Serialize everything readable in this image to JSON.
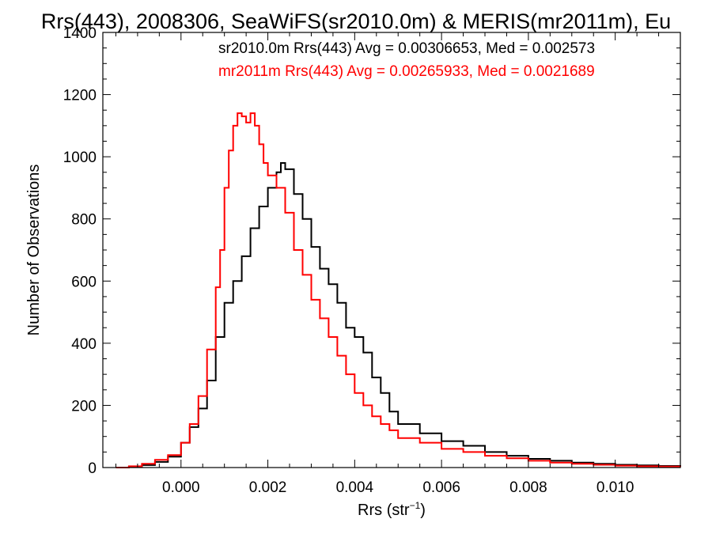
{
  "chart_data": {
    "type": "histogram",
    "title": "Rrs(443), 2008306, SeaWiFS(sr2010.0m) & MERIS(mr2011m), Eu",
    "xlabel": "Rrs (str",
    "xlabel_sup": "−1",
    "xlabel_close": ")",
    "ylabel": "Number of Observations",
    "xlim": [
      -0.0018,
      0.0115
    ],
    "ylim": [
      0,
      1400
    ],
    "x_ticks": [
      0.0,
      0.002,
      0.004,
      0.006,
      0.008,
      0.01
    ],
    "x_tick_labels": [
      "0.000",
      "0.002",
      "0.004",
      "0.006",
      "0.008",
      "0.010"
    ],
    "y_ticks": [
      0,
      200,
      400,
      600,
      800,
      1000,
      1200,
      1400
    ],
    "y_tick_labels": [
      "0",
      "200",
      "400",
      "600",
      "800",
      "1000",
      "1200",
      "1400"
    ],
    "grid": false,
    "legend_position": "top-right",
    "series": [
      {
        "name": "sr2010.0m",
        "color": "#000000",
        "legend_text": "sr2010.0m Rrs(443) Avg = 0.00306653, Med = 0.002573",
        "x": [
          -0.0015,
          -0.0012,
          -0.0009,
          -0.0006,
          -0.0003,
          0.0,
          0.0002,
          0.0004,
          0.0006,
          0.0008,
          0.001,
          0.0012,
          0.0014,
          0.0016,
          0.0018,
          0.002,
          0.0022,
          0.0023,
          0.0024,
          0.0026,
          0.0028,
          0.003,
          0.0032,
          0.0034,
          0.0036,
          0.0038,
          0.004,
          0.0042,
          0.0044,
          0.0046,
          0.0048,
          0.005,
          0.0055,
          0.006,
          0.0065,
          0.007,
          0.0075,
          0.008,
          0.0085,
          0.009,
          0.0095,
          0.01,
          0.0105,
          0.011,
          0.0115
        ],
        "y": [
          0,
          2,
          8,
          18,
          35,
          80,
          130,
          190,
          280,
          420,
          530,
          600,
          680,
          770,
          840,
          900,
          950,
          980,
          960,
          880,
          800,
          710,
          640,
          590,
          530,
          450,
          420,
          370,
          290,
          240,
          180,
          140,
          110,
          85,
          70,
          50,
          38,
          28,
          22,
          16,
          12,
          9,
          7,
          5,
          3
        ]
      },
      {
        "name": "mr2011m",
        "color": "#ff0000",
        "legend_text": "mr2011m Rrs(443) Avg = 0.00265933, Med = 0.0021689",
        "x": [
          -0.0015,
          -0.0012,
          -0.0009,
          -0.0006,
          -0.0003,
          0.0,
          0.0002,
          0.0004,
          0.0006,
          0.0008,
          0.0009,
          0.001,
          0.0011,
          0.0012,
          0.0013,
          0.0014,
          0.0015,
          0.0016,
          0.0017,
          0.0018,
          0.0019,
          0.002,
          0.0022,
          0.0024,
          0.0026,
          0.0028,
          0.003,
          0.0032,
          0.0034,
          0.0036,
          0.0038,
          0.004,
          0.0042,
          0.0044,
          0.0046,
          0.0048,
          0.005,
          0.0055,
          0.006,
          0.0065,
          0.007,
          0.0075,
          0.008,
          0.0085,
          0.009,
          0.0095,
          0.01,
          0.0105,
          0.011,
          0.0115
        ],
        "y": [
          0,
          4,
          12,
          25,
          40,
          80,
          140,
          230,
          380,
          580,
          700,
          900,
          1020,
          1100,
          1140,
          1130,
          1110,
          1140,
          1100,
          1040,
          980,
          940,
          900,
          820,
          700,
          620,
          540,
          480,
          420,
          360,
          300,
          240,
          200,
          165,
          140,
          120,
          95,
          80,
          60,
          50,
          38,
          30,
          22,
          16,
          12,
          9,
          6,
          4,
          3,
          2
        ]
      }
    ]
  }
}
